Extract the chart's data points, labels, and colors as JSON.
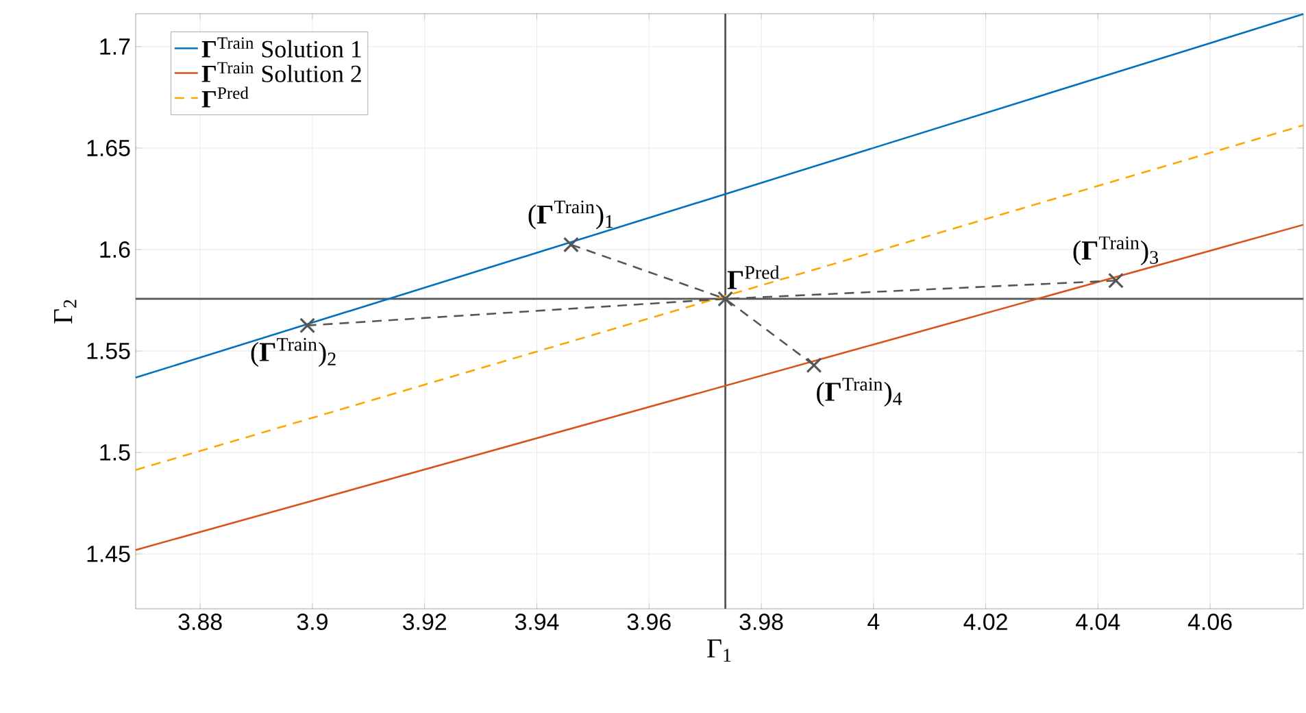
{
  "chart_data": {
    "type": "line",
    "xlabel": "Γ$_{1}$",
    "ylabel": "Γ$_{2}$",
    "xlim": [
      3.8685,
      4.0766
    ],
    "ylim": [
      1.423,
      1.7162
    ],
    "xticks": [
      3.88,
      3.9,
      3.92,
      3.94,
      3.96,
      3.98,
      4,
      4.02,
      4.04,
      4.06
    ],
    "yticks": [
      1.45,
      1.5,
      1.55,
      1.6,
      1.65,
      1.7
    ],
    "grid": true,
    "legend": "top left",
    "series": [
      {
        "name": "**Γ**$^{Train}$ Solution 1",
        "color": "#0072bd",
        "x": [
          3.8685,
          4.0766
        ],
        "values": [
          1.5369,
          1.716
        ],
        "line_style": "solid"
      },
      {
        "name": "**Γ**$^{Train}$ Solution 2",
        "color": "#d95319",
        "x": [
          3.8685,
          4.0766
        ],
        "values": [
          1.452,
          1.6122
        ],
        "line_style": "solid"
      },
      {
        "name": "**Γ**$^{Pred}$",
        "color": "#ffa500",
        "x": [
          3.8685,
          4.0766
        ],
        "values": [
          1.4914,
          1.6612
        ],
        "line_style": "dashed"
      },
      {
        "color": "#555555",
        "x": [
          3.9461,
          3.9736,
          3.8991
        ],
        "values": [
          1.6024,
          1.5757,
          1.5626
        ],
        "line_style": "dashed"
      },
      {
        "color": "#555555",
        "x": [
          4.0432,
          3.9736,
          3.9894
        ],
        "values": [
          1.5847,
          1.5757,
          1.543
        ],
        "line_style": "dashed"
      },
      {
        "type": "scatter",
        "color": "#555555",
        "marker": "cross",
        "x": [
          3.9736,
          3.9461,
          3.8991,
          4.0432,
          3.9894
        ],
        "values": [
          1.5757,
          1.6024,
          1.5626,
          1.5847,
          1.543
        ]
      }
    ],
    "ref_lines": [
      {
        "axis": "x",
        "value": 3.9736,
        "color": "#555555"
      },
      {
        "axis": "y",
        "value": 1.5757,
        "color": "#555555"
      }
    ],
    "annotations": [
      {
        "text": "**Γ**$^{Pred}$",
        "x": 3.9736,
        "y": 1.5757
      },
      {
        "text": "(**Γ**$^{Train}$)$_{1}$",
        "x": 3.9461,
        "y": 1.6024
      },
      {
        "text": "(**Γ**$^{Train}$)$_{2}$",
        "x": 3.8991,
        "y": 1.5626
      },
      {
        "text": "(**Γ**$^{Train}$)$_{3}$",
        "x": 4.0432,
        "y": 1.5847
      },
      {
        "text": "(**Γ**$^{Train}$)$_{4}$",
        "x": 3.9894,
        "y": 1.543
      }
    ]
  }
}
